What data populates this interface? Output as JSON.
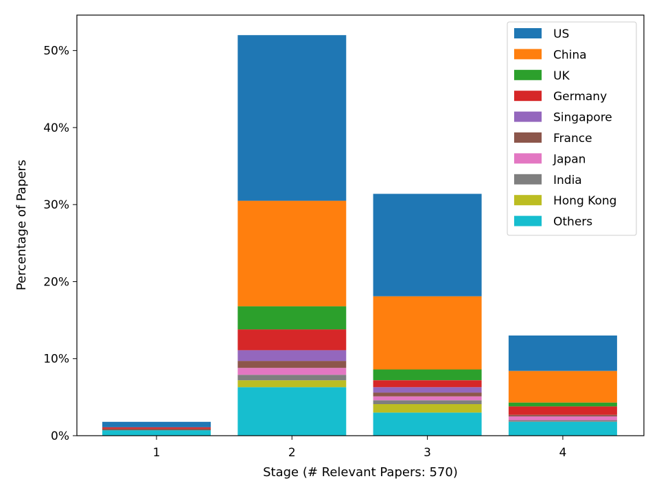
{
  "chart_data": {
    "type": "bar",
    "stacked": true,
    "categories": [
      "1",
      "2",
      "3",
      "4"
    ],
    "xlabel": "Stage (# Relevant Papers: 570)",
    "ylabel": "Percentage of Papers",
    "ylim": [
      0,
      54.6
    ],
    "yticks": [
      0,
      10,
      20,
      30,
      40,
      50
    ],
    "ytick_labels": [
      "0%",
      "10%",
      "20%",
      "30%",
      "40%",
      "50%"
    ],
    "legend_position": "top-right",
    "grid": false,
    "series": [
      {
        "name": "Others",
        "color": "#17becf",
        "values": [
          0.7,
          6.3,
          3.0,
          1.8
        ]
      },
      {
        "name": "Hong Kong",
        "color": "#bcbd22",
        "values": [
          0.0,
          0.9,
          1.1,
          0.0
        ]
      },
      {
        "name": "India",
        "color": "#7f7f7f",
        "values": [
          0.0,
          0.7,
          0.5,
          0.2
        ]
      },
      {
        "name": "Japan",
        "color": "#e377c2",
        "values": [
          0.0,
          0.9,
          0.5,
          0.5
        ]
      },
      {
        "name": "France",
        "color": "#8c564b",
        "values": [
          0.2,
          0.9,
          0.5,
          0.2
        ]
      },
      {
        "name": "Singapore",
        "color": "#9467bd",
        "values": [
          0.0,
          1.4,
          0.7,
          0.0
        ]
      },
      {
        "name": "Germany",
        "color": "#d62728",
        "values": [
          0.2,
          2.7,
          0.9,
          1.1
        ]
      },
      {
        "name": "UK",
        "color": "#2ca02c",
        "values": [
          0.0,
          3.0,
          1.4,
          0.5
        ]
      },
      {
        "name": "China",
        "color": "#ff7f0e",
        "values": [
          0.0,
          13.7,
          9.5,
          4.1
        ]
      },
      {
        "name": "US",
        "color": "#1f77b4",
        "values": [
          0.7,
          21.5,
          13.3,
          4.6
        ]
      }
    ]
  }
}
